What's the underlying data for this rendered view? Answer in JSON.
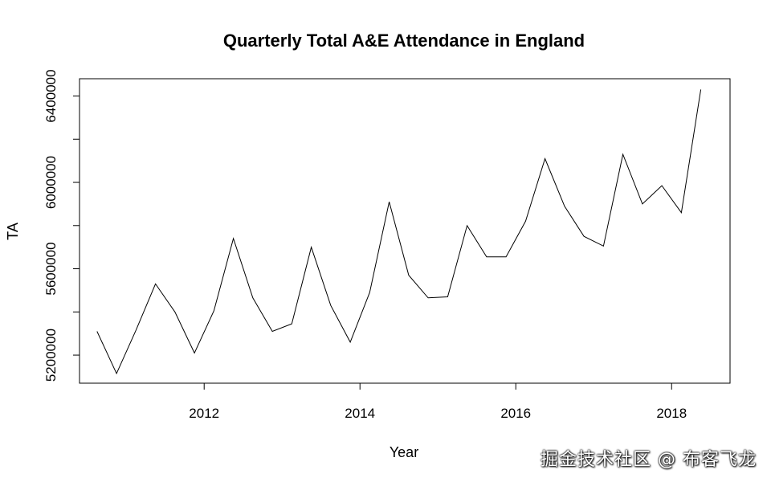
{
  "chart_data": {
    "type": "line",
    "title": "Quarterly Total A&E Attendance in England",
    "xlabel": "Year",
    "ylabel": "TA",
    "xlim": [
      2010.4,
      2018.75
    ],
    "ylim": [
      5070000,
      6480000
    ],
    "x_ticks": [
      2012,
      2014,
      2016,
      2018
    ],
    "y_ticks": [
      5200000,
      5600000,
      6000000,
      6400000
    ],
    "grid": false,
    "legend": "none",
    "line_color": "#000000",
    "series": [
      {
        "x": [
          2010.625,
          2010.875,
          2011.125,
          2011.375,
          2011.625,
          2011.875,
          2012.125,
          2012.375,
          2012.625,
          2012.875,
          2013.125,
          2013.375,
          2013.625,
          2013.875,
          2014.125,
          2014.375,
          2014.625,
          2014.875,
          2015.125,
          2015.375,
          2015.625,
          2015.875,
          2016.125,
          2016.375,
          2016.625,
          2016.875,
          2017.125,
          2017.375,
          2017.625,
          2017.875,
          2018.125,
          2018.375
        ],
        "y": [
          5310000,
          5115000,
          5315000,
          5530000,
          5400000,
          5210000,
          5405000,
          5740000,
          5465000,
          5310000,
          5345000,
          5700000,
          5430000,
          5260000,
          5490000,
          5910000,
          5570000,
          5465000,
          5470000,
          5800000,
          5655000,
          5655000,
          5820000,
          6110000,
          5890000,
          5750000,
          5705000,
          6130000,
          5900000,
          5985000,
          5860000,
          6430000
        ]
      }
    ]
  },
  "watermark": "掘金技术社区 @ 布客飞龙"
}
